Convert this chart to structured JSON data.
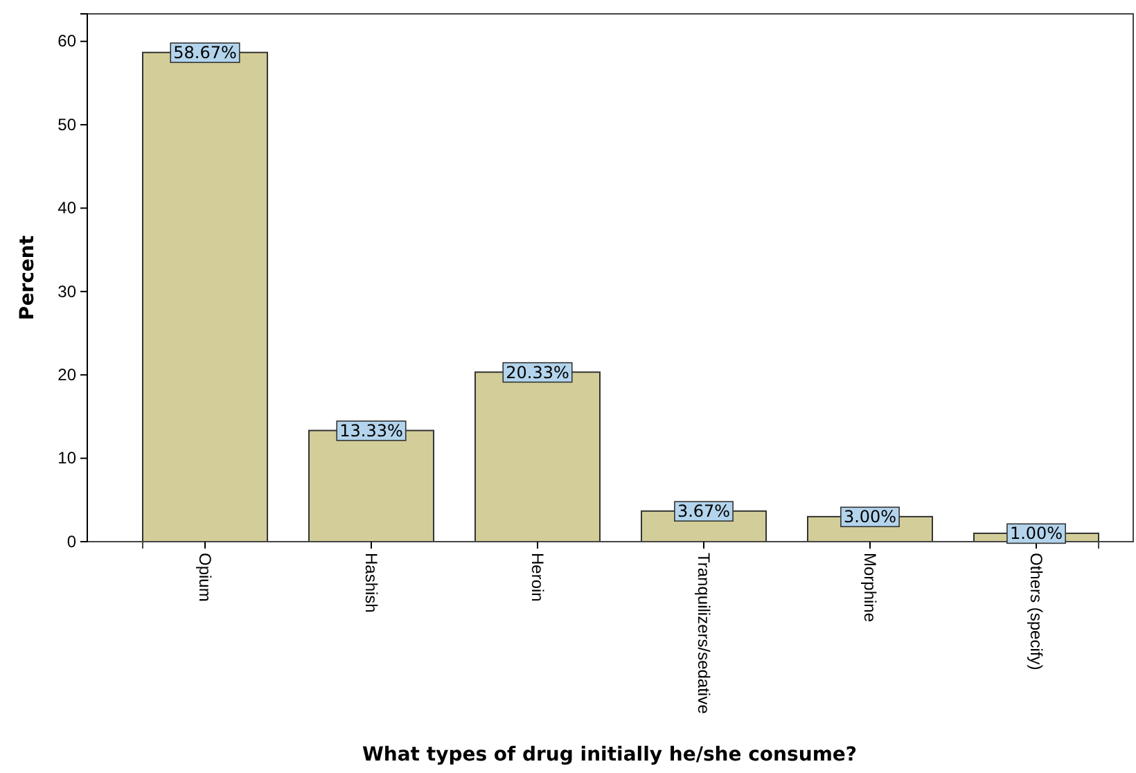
{
  "chart_data": {
    "type": "bar",
    "xlabel": "What types of drug initially he/she consume?",
    "ylabel": "Percent",
    "categories": [
      "Opium",
      "Hashish",
      "Heroin",
      "Tranquilizers/sedative",
      "Morphine",
      "Others (specify)"
    ],
    "values": [
      58.67,
      13.33,
      20.33,
      3.67,
      3.0,
      1.0
    ],
    "value_labels": [
      "58.67%",
      "13.33%",
      "20.33%",
      "3.67%",
      "3.00%",
      "1.00%"
    ],
    "color": "#d3ce99",
    "ylim": [
      0,
      63.3
    ],
    "yticks": [
      0,
      10,
      20,
      30,
      40,
      50,
      60
    ],
    "grid": false
  }
}
